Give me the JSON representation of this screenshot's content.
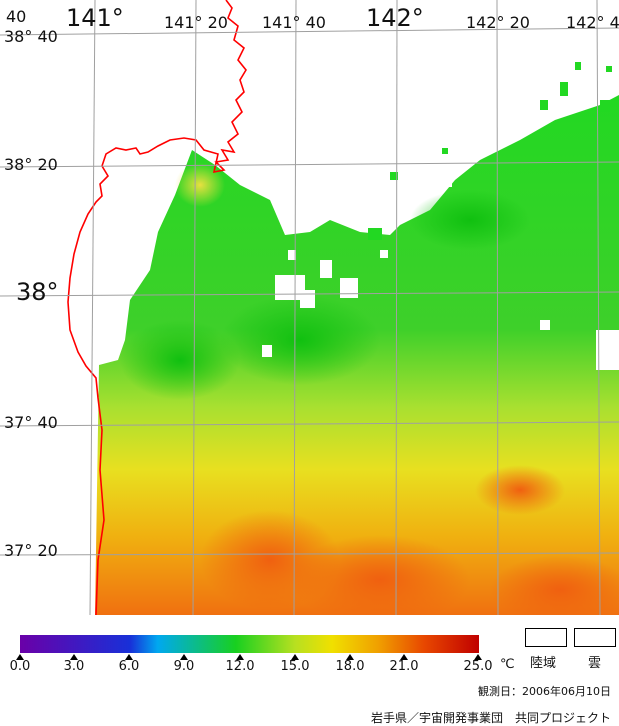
{
  "lon_labels": [
    "141°",
    "141° 20",
    "141° 40",
    "142°",
    "142° 20",
    "142° 4"
  ],
  "lat_labels": [
    "38° 40",
    "38° 20",
    "38°",
    "37° 40",
    "37° 20"
  ],
  "corner_label": "40",
  "colorbar": {
    "ticks": [
      "0.0",
      "3.0",
      "6.0",
      "9.0",
      "12.0",
      "15.0",
      "18.0",
      "21.0",
      "25.0"
    ],
    "unit": "℃"
  },
  "key": {
    "land": "陸域",
    "cloud": "雲"
  },
  "obs_date": "観測日：2006年06月10日",
  "credit": "岩手県／宇宙開発事業団　共同プロジェクト",
  "colors": {
    "coast": "#ff0000",
    "grid": "#a0a0a0",
    "cold_sst": "#20d020",
    "warm_sst": "#f06810"
  }
}
